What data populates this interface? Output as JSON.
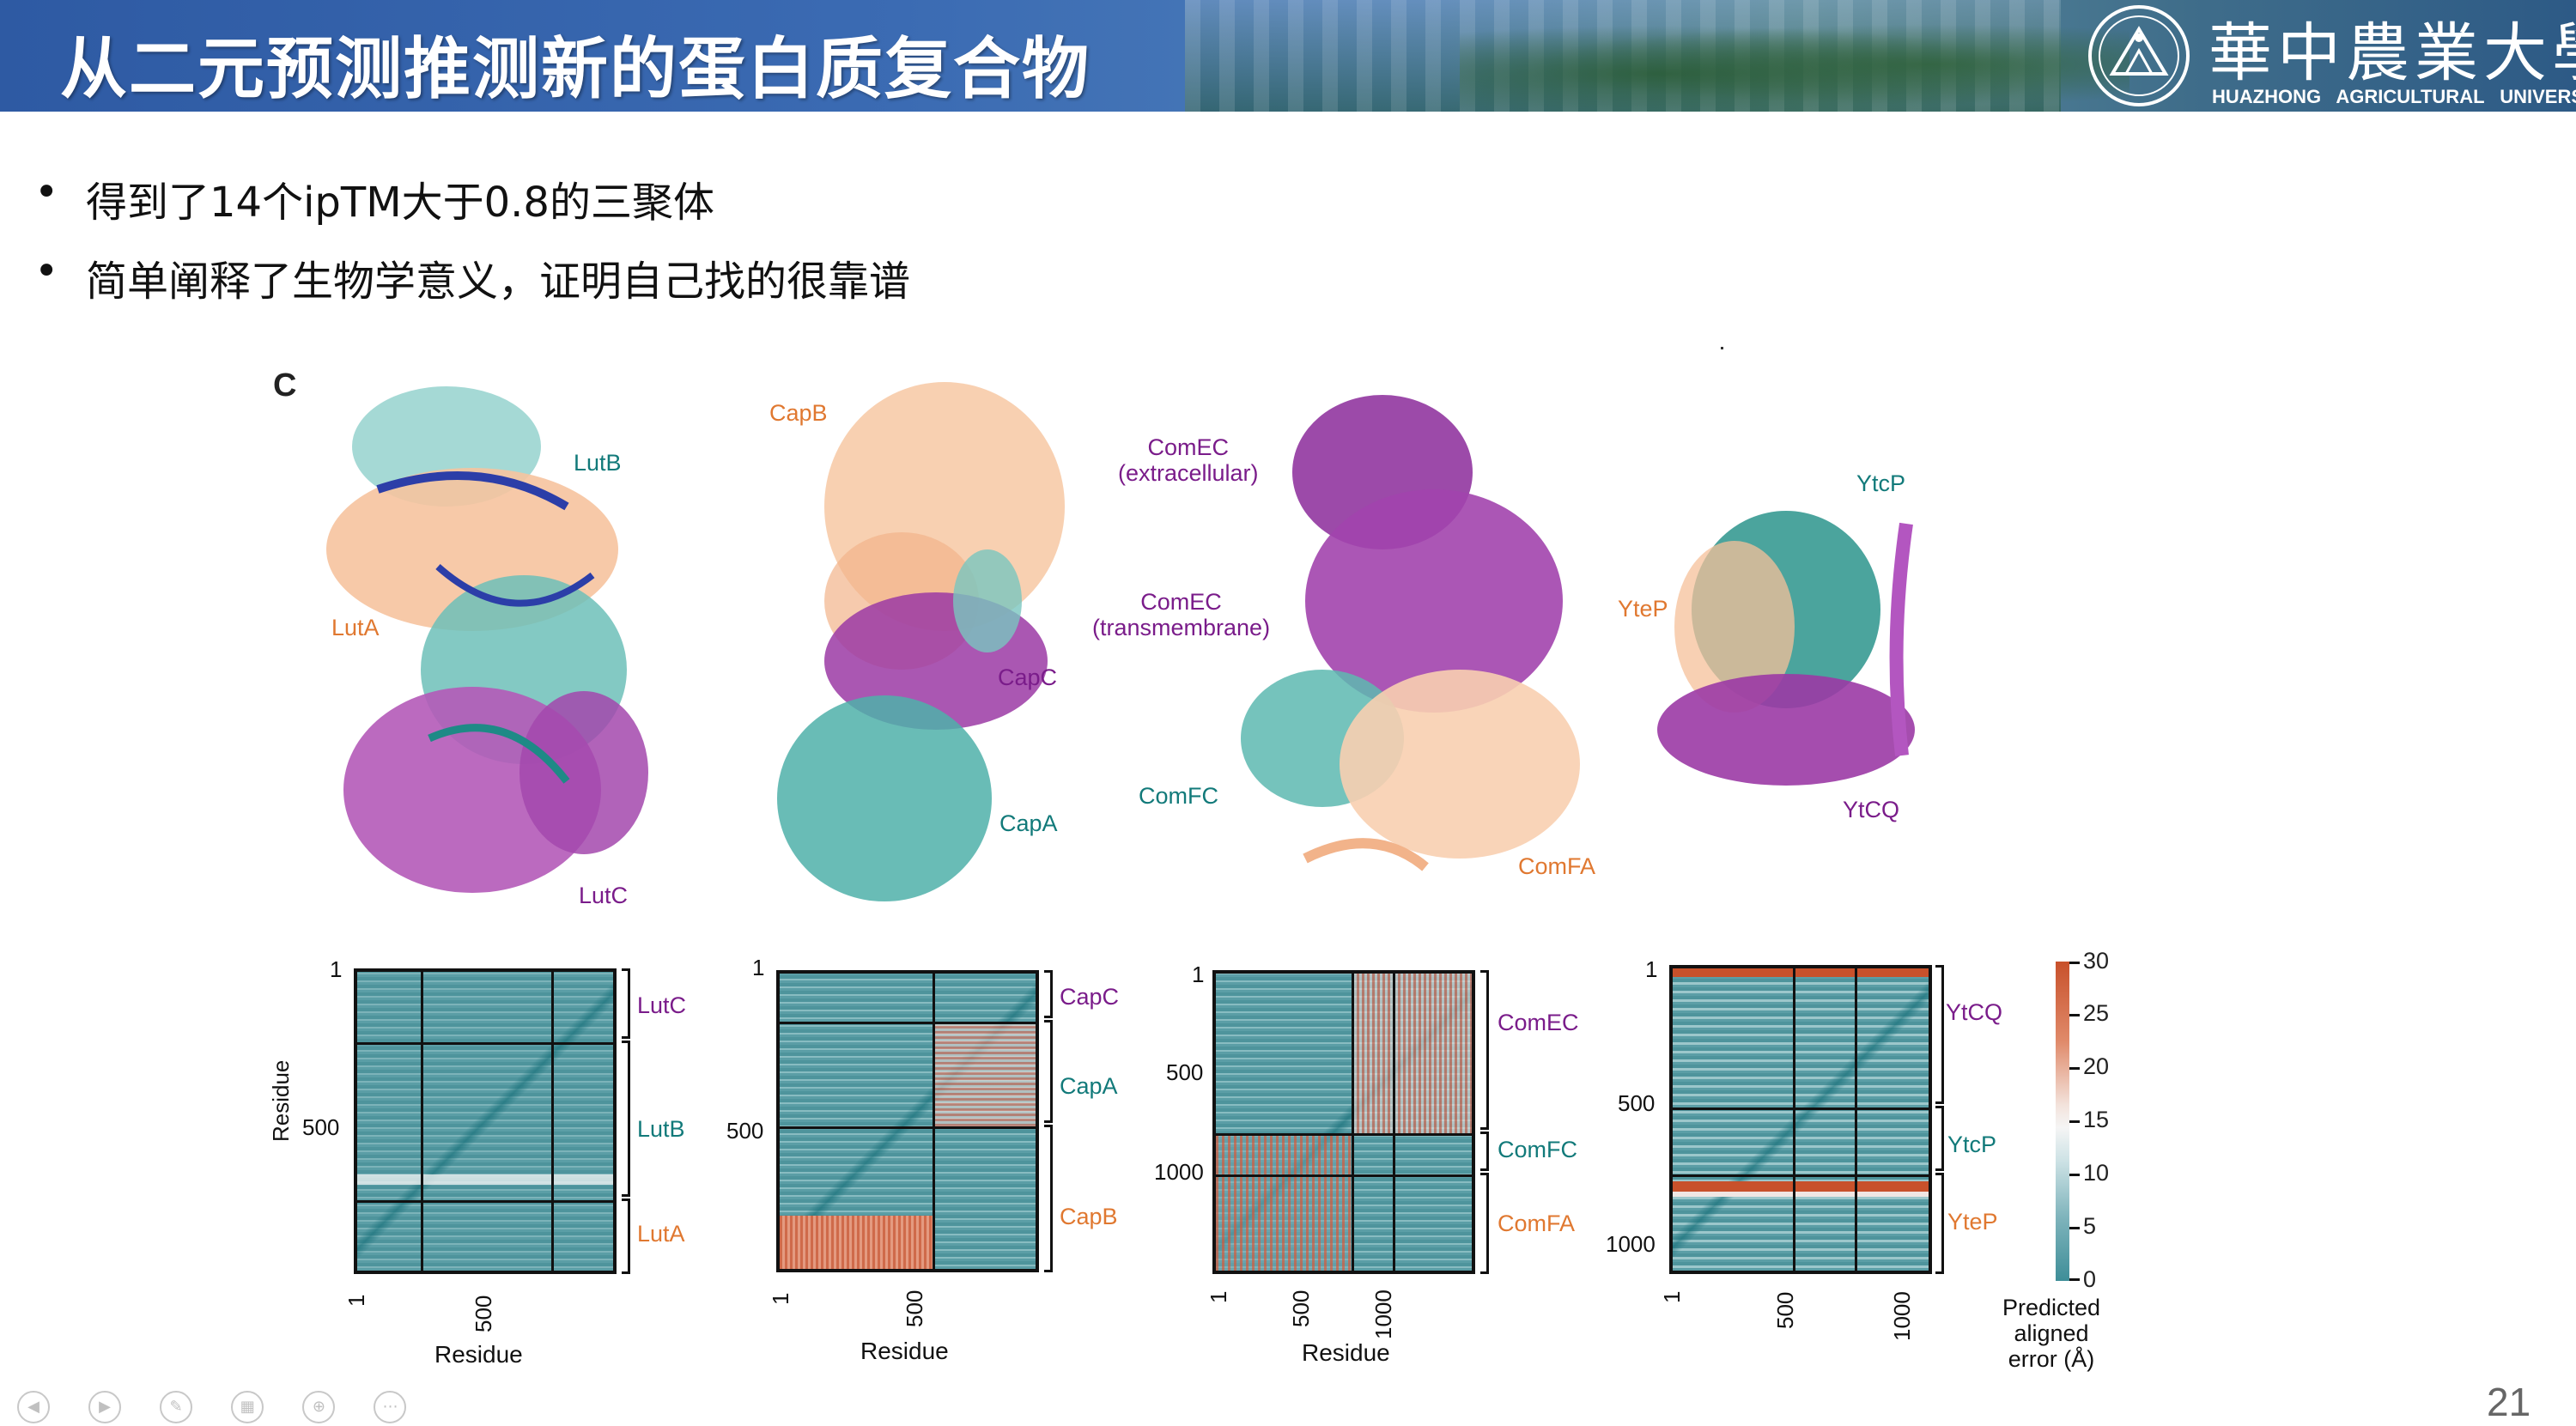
{
  "header": {
    "title": "从二元预测推测新的蛋白质复合物",
    "university_cn": "華中農業大學",
    "university_en": "HUAZHONG AGRICULTURAL UNIVERSITY"
  },
  "bullets": [
    "得到了14个ipTM大于0.8的三聚体",
    "简单阐释了生物学意义，证明自己找的很靠谱"
  ],
  "figure": {
    "panel_label": "C",
    "structures": [
      {
        "labels": [
          {
            "text": "LutB",
            "color": "teal"
          },
          {
            "text": "LutA",
            "color": "orange"
          },
          {
            "text": "LutC",
            "color": "purple"
          }
        ]
      },
      {
        "labels": [
          {
            "text": "CapB",
            "color": "orange"
          },
          {
            "text": "CapC",
            "color": "purple"
          },
          {
            "text": "CapA",
            "color": "teal"
          }
        ]
      },
      {
        "labels": [
          {
            "text": "ComEC\n(extracellular)",
            "color": "purple"
          },
          {
            "text": "ComEC\n(transmembrane)",
            "color": "purple"
          },
          {
            "text": "ComFC",
            "color": "teal"
          },
          {
            "text": "ComFA",
            "color": "orange"
          }
        ]
      },
      {
        "labels": [
          {
            "text": "YtcP",
            "color": "teal"
          },
          {
            "text": "YteP",
            "color": "orange"
          },
          {
            "text": "YtCQ",
            "color": "purple"
          }
        ]
      }
    ],
    "heatmaps": [
      {
        "row_labels": [
          "LutC",
          "LutB",
          "LutA"
        ],
        "y_ticks": [
          "1",
          "500"
        ],
        "x_ticks": [
          "1",
          "500"
        ],
        "ylabel": "Residue",
        "xlabel": "Residue"
      },
      {
        "row_labels": [
          "CapC",
          "CapA",
          "CapB"
        ],
        "y_ticks": [
          "1",
          "500"
        ],
        "x_ticks": [
          "1",
          "500"
        ],
        "xlabel": "Residue"
      },
      {
        "row_labels": [
          "ComEC",
          "ComFC",
          "ComFA"
        ],
        "y_ticks": [
          "1",
          "500",
          "1000"
        ],
        "x_ticks": [
          "1",
          "500",
          "1000"
        ],
        "xlabel": "Residue"
      },
      {
        "row_labels": [
          "YtCQ",
          "YtcP",
          "YteP"
        ],
        "y_ticks": [
          "1",
          "500",
          "1000"
        ],
        "x_ticks": [
          "1",
          "500",
          "1000"
        ]
      }
    ],
    "colorbar": {
      "ticks": [
        "30",
        "25",
        "20",
        "15",
        "10",
        "5",
        "0"
      ],
      "label": "Predicted\naligned\nerror (Å)"
    }
  },
  "colors": {
    "purple": "#7a1c8a",
    "teal": "#127a7a",
    "orange": "#e07830",
    "banner": "#3b6bb3"
  },
  "page_number": "21"
}
